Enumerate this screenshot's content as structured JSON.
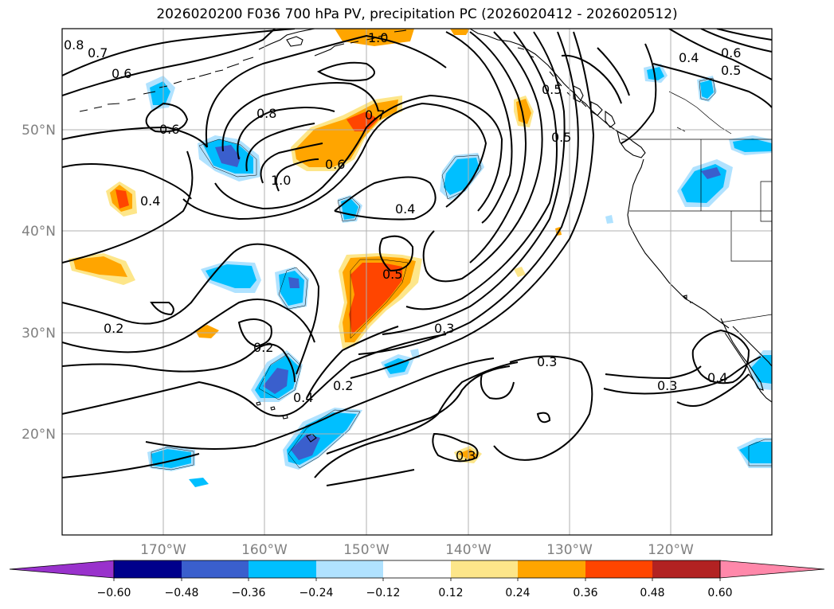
{
  "title": "2026020200 F036 700 hPa PV, precipitation PC (2026020412 - 2026020512)",
  "lat_labels": [
    "50°N",
    "40°N",
    "30°N",
    "20°N"
  ],
  "lon_labels": [
    "170°W",
    "160°W",
    "150°W",
    "140°W",
    "130°W",
    "120°W"
  ],
  "colorbar": {
    "tick_labels": [
      "−0.60",
      "−0.48",
      "−0.36",
      "−0.24",
      "−0.12",
      "0.12",
      "0.24",
      "0.36",
      "0.48",
      "0.60"
    ],
    "colors": [
      "#9932cc",
      "#00008b",
      "#3a5fcd",
      "#00bfff",
      "#b0e2ff",
      "#ffffff",
      "#fde68a",
      "#ffa500",
      "#ff4500",
      "#b22222",
      "#ff88aa"
    ]
  },
  "contour_labels": [
    "0.8",
    "0.7",
    "0.6",
    "0.6",
    "1.0",
    "0.8",
    "1.0",
    "0.7",
    "0.6",
    "0.4",
    "0.4",
    "0.5",
    "0.5",
    "0.4",
    "0.6",
    "0.5",
    "0.2",
    "0.3",
    "0.2",
    "0.5",
    "0.4",
    "0.2",
    "0.3",
    "0.3",
    "0.4",
    "0.3"
  ]
}
